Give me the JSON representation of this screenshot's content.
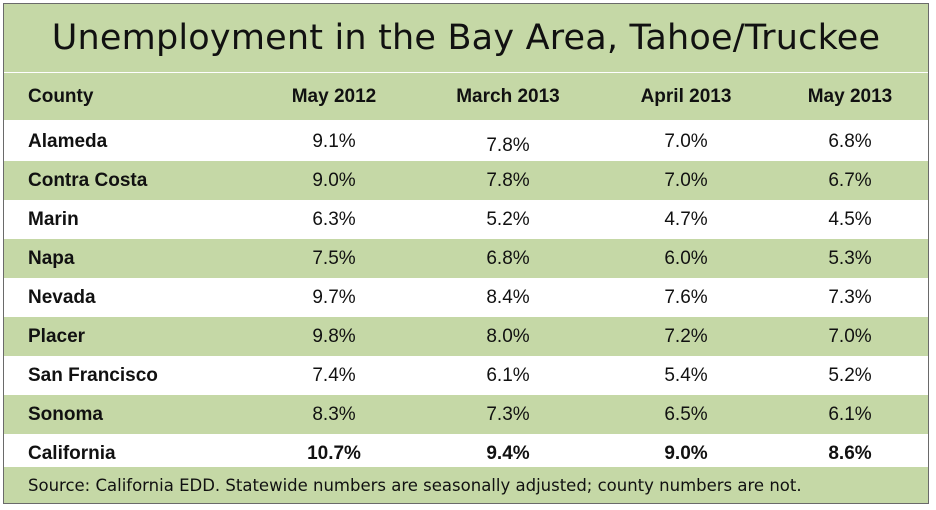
{
  "title": "Unemployment in the Bay Area, Tahoe/Truckee",
  "columns": [
    "County",
    "May 2012",
    "March 2013",
    "April 2013",
    "May 2013"
  ],
  "rows": [
    {
      "county": "Alameda",
      "values": [
        "9.1%",
        "7.8%",
        "7.0%",
        "6.8%"
      ]
    },
    {
      "county": "Contra Costa",
      "values": [
        "9.0%",
        "7.8%",
        "7.0%",
        "6.7%"
      ]
    },
    {
      "county": "Marin",
      "values": [
        "6.3%",
        "5.2%",
        "4.7%",
        "4.5%"
      ]
    },
    {
      "county": "Napa",
      "values": [
        "7.5%",
        "6.8%",
        "6.0%",
        "5.3%"
      ]
    },
    {
      "county": "Nevada",
      "values": [
        "9.7%",
        "8.4%",
        "7.6%",
        "7.3%"
      ]
    },
    {
      "county": "Placer",
      "values": [
        "9.8%",
        "8.0%",
        "7.2%",
        "7.0%"
      ]
    },
    {
      "county": "San Francisco",
      "values": [
        "7.4%",
        "6.1%",
        "5.4%",
        "5.2%"
      ]
    },
    {
      "county": "Sonoma",
      "values": [
        "8.3%",
        "7.3%",
        "6.5%",
        "6.1%"
      ]
    },
    {
      "county": "California",
      "values": [
        "10.7%",
        "9.4%",
        "9.0%",
        "8.6%"
      ]
    }
  ],
  "source": "Source: California EDD. Statewide numbers are seasonally adjusted; county numbers are not.",
  "colors": {
    "band": "#c5d8a6",
    "border": "#6a6a6a"
  }
}
